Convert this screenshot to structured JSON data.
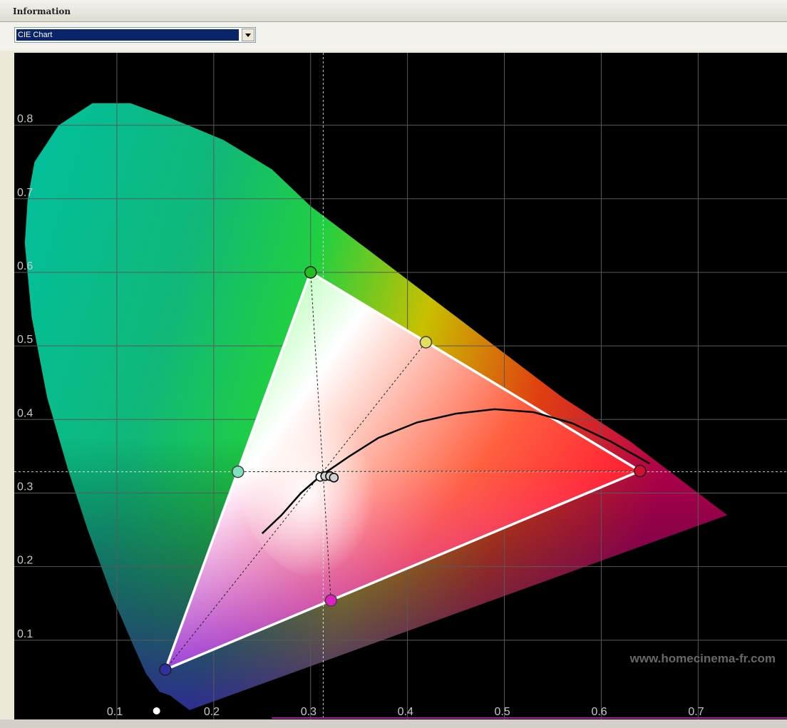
{
  "panel": {
    "title": "Information"
  },
  "view_select": {
    "selected": "CIE Chart",
    "icon": "chevron-down-icon"
  },
  "watermark": "www.homecinema-fr.com",
  "colors": {
    "background": "#000000",
    "grid": "#5a5a5a",
    "gamut_outline": "#ffffff",
    "tick_label": "#c8c8c8"
  },
  "chart_data": {
    "type": "scatter",
    "title": "",
    "xlabel": "",
    "ylabel": "",
    "xlim": [
      0.0,
      0.8
    ],
    "ylim": [
      0.0,
      0.87
    ],
    "grid": true,
    "x_ticks": [
      0.1,
      0.2,
      0.3,
      0.4,
      0.5,
      0.6,
      0.7
    ],
    "y_ticks": [
      0.1,
      0.2,
      0.3,
      0.4,
      0.5,
      0.6,
      0.7,
      0.8
    ],
    "x_tick_labels": [
      "0.1",
      "0.2",
      "0.3",
      "0.4",
      "0.5",
      "0.6",
      "0.7"
    ],
    "y_tick_labels": [
      "0.1",
      "0.2",
      "0.3",
      "0.4",
      "0.5",
      "0.6",
      "0.7",
      "0.8"
    ],
    "spectral_locus": [
      [
        0.175,
        0.005
      ],
      [
        0.155,
        0.025
      ],
      [
        0.144,
        0.03
      ],
      [
        0.13,
        0.055
      ],
      [
        0.118,
        0.09
      ],
      [
        0.095,
        0.16
      ],
      [
        0.07,
        0.25
      ],
      [
        0.05,
        0.33
      ],
      [
        0.028,
        0.43
      ],
      [
        0.012,
        0.54
      ],
      [
        0.005,
        0.64
      ],
      [
        0.008,
        0.7
      ],
      [
        0.015,
        0.75
      ],
      [
        0.04,
        0.8
      ],
      [
        0.075,
        0.83
      ],
      [
        0.114,
        0.83
      ],
      [
        0.155,
        0.81
      ],
      [
        0.21,
        0.78
      ],
      [
        0.26,
        0.74
      ],
      [
        0.3,
        0.69
      ],
      [
        0.37,
        0.62
      ],
      [
        0.44,
        0.55
      ],
      [
        0.5,
        0.49
      ],
      [
        0.56,
        0.43
      ],
      [
        0.63,
        0.37
      ],
      [
        0.69,
        0.31
      ],
      [
        0.73,
        0.27
      ]
    ],
    "measured_gamut": [
      {
        "name": "Red",
        "x": 0.64,
        "y": 0.33,
        "color": "#d01030"
      },
      {
        "name": "Green",
        "x": 0.3,
        "y": 0.6,
        "color": "#20c020"
      },
      {
        "name": "Blue",
        "x": 0.15,
        "y": 0.06,
        "color": "#3030a0"
      }
    ],
    "secondaries": [
      {
        "name": "Yellow",
        "x": 0.419,
        "y": 0.505,
        "color": "#e0e060"
      },
      {
        "name": "Cyan",
        "x": 0.225,
        "y": 0.329,
        "color": "#80e0c0"
      },
      {
        "name": "Magenta",
        "x": 0.321,
        "y": 0.154,
        "color": "#e020c0"
      }
    ],
    "white_point": {
      "x": 0.313,
      "y": 0.329
    },
    "white_measurements": [
      {
        "x": 0.31,
        "y": 0.322
      },
      {
        "x": 0.315,
        "y": 0.323
      },
      {
        "x": 0.32,
        "y": 0.323
      },
      {
        "x": 0.324,
        "y": 0.321
      }
    ],
    "blackbody_locus": [
      [
        0.25,
        0.245
      ],
      [
        0.27,
        0.27
      ],
      [
        0.29,
        0.3
      ],
      [
        0.31,
        0.323
      ],
      [
        0.34,
        0.35
      ],
      [
        0.37,
        0.375
      ],
      [
        0.41,
        0.396
      ],
      [
        0.45,
        0.408
      ],
      [
        0.49,
        0.414
      ],
      [
        0.53,
        0.41
      ],
      [
        0.57,
        0.395
      ],
      [
        0.61,
        0.37
      ],
      [
        0.65,
        0.34
      ]
    ],
    "extra_marker": {
      "x": 0.141,
      "y": 0.0
    }
  }
}
